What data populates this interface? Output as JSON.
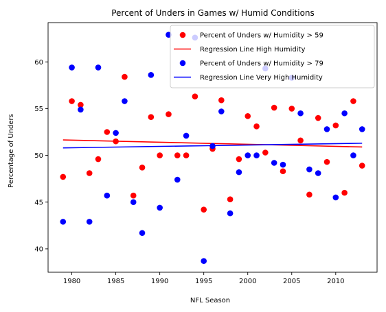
{
  "chart_data": {
    "type": "scatter",
    "title": "Percent of Unders in Games w/ Humid Conditions",
    "xlabel": "NFL Season",
    "ylabel": "Percentage of Unders",
    "xlim": [
      1977.3,
      2014.7
    ],
    "ylim": [
      37.5,
      64.2
    ],
    "xticks": [
      1980,
      1985,
      1990,
      1995,
      2000,
      2005,
      2010
    ],
    "yticks": [
      40,
      45,
      50,
      55,
      60
    ],
    "grid": false,
    "legend_placement": "upper-right",
    "series": [
      {
        "name": "Percent of Unders w/ Humidity > 59",
        "kind": "points",
        "color": "#ff0000",
        "points": [
          [
            1979,
            47.7
          ],
          [
            1980,
            55.8
          ],
          [
            1981,
            55.4
          ],
          [
            1982,
            48.1
          ],
          [
            1983,
            49.6
          ],
          [
            1984,
            52.5
          ],
          [
            1985,
            51.5
          ],
          [
            1986,
            58.4
          ],
          [
            1987,
            45.7
          ],
          [
            1988,
            48.7
          ],
          [
            1989,
            54.1
          ],
          [
            1990,
            50.0
          ],
          [
            1991,
            54.4
          ],
          [
            1992,
            50.0
          ],
          [
            1993,
            50.0
          ],
          [
            1994,
            56.3
          ],
          [
            1995,
            44.2
          ],
          [
            1996,
            50.7
          ],
          [
            1997,
            55.9
          ],
          [
            1998,
            45.3
          ],
          [
            1999,
            49.6
          ],
          [
            2000,
            54.2
          ],
          [
            2001,
            53.1
          ],
          [
            2002,
            50.3
          ],
          [
            2003,
            55.1
          ],
          [
            2004,
            48.3
          ],
          [
            2005,
            55.0
          ],
          [
            2006,
            51.6
          ],
          [
            2007,
            45.8
          ],
          [
            2008,
            54.0
          ],
          [
            2009,
            49.3
          ],
          [
            2010,
            53.2
          ],
          [
            2011,
            46.0
          ],
          [
            2012,
            55.8
          ],
          [
            2013,
            48.9
          ]
        ]
      },
      {
        "name": "Regression Line High Humidity",
        "kind": "line",
        "color": "#ff0000",
        "points": [
          [
            1979,
            51.65
          ],
          [
            2013,
            50.9
          ]
        ]
      },
      {
        "name": "Percent of Unders w/ Humidity > 79",
        "kind": "points",
        "color": "#0000ff",
        "points": [
          [
            1979,
            42.9
          ],
          [
            1980,
            59.4
          ],
          [
            1981,
            54.9
          ],
          [
            1982,
            42.9
          ],
          [
            1983,
            59.4
          ],
          [
            1984,
            45.7
          ],
          [
            1985,
            52.4
          ],
          [
            1986,
            55.8
          ],
          [
            1987,
            45.0
          ],
          [
            1988,
            41.7
          ],
          [
            1989,
            58.6
          ],
          [
            1990,
            44.4
          ],
          [
            1991,
            62.9
          ],
          [
            1992,
            47.4
          ],
          [
            1993,
            52.1
          ],
          [
            1994,
            62.6
          ],
          [
            1995,
            38.7
          ],
          [
            1996,
            51.0
          ],
          [
            1997,
            54.7
          ],
          [
            1998,
            43.8
          ],
          [
            1999,
            48.2
          ],
          [
            2000,
            50.0
          ],
          [
            2001,
            50.0
          ],
          [
            2002,
            59.3
          ],
          [
            2003,
            49.2
          ],
          [
            2004,
            49.0
          ],
          [
            2005,
            58.3
          ],
          [
            2006,
            54.5
          ],
          [
            2007,
            48.5
          ],
          [
            2008,
            48.1
          ],
          [
            2009,
            52.8
          ],
          [
            2010,
            45.5
          ],
          [
            2011,
            54.5
          ],
          [
            2012,
            50.0
          ],
          [
            2013,
            52.8
          ]
        ]
      },
      {
        "name": "Regression Line Very High Humidity",
        "kind": "line",
        "color": "#0000ff",
        "points": [
          [
            1979,
            50.8
          ],
          [
            2013,
            51.3
          ]
        ]
      }
    ]
  }
}
